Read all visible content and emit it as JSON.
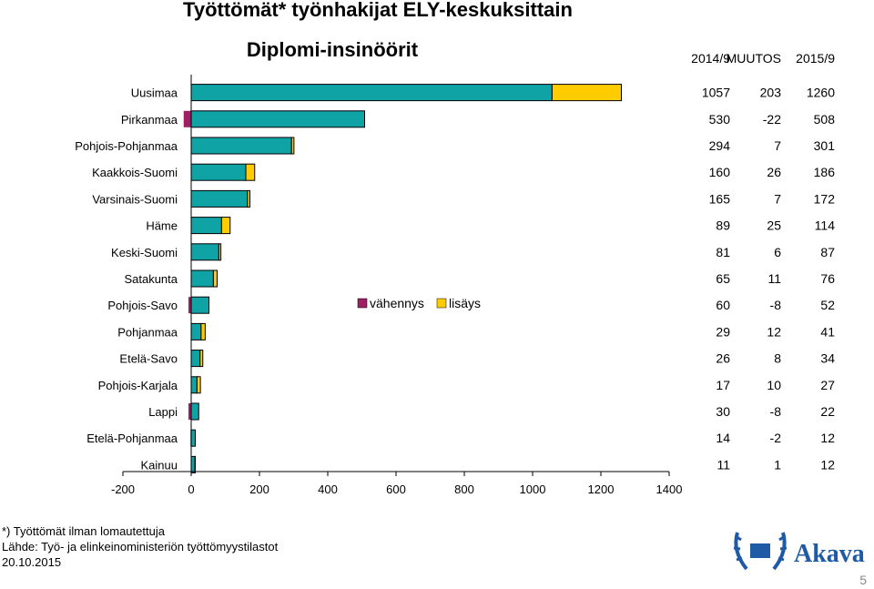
{
  "main_title": "Työttömät* työnhakijat ELY-keskuksittain",
  "chart_data": {
    "type": "bar",
    "orientation": "horizontal-stacked",
    "title": "Diplomi-insinöörit",
    "categories": [
      "Uusimaa",
      "Pirkanmaa",
      "Pohjois-Pohjanmaa",
      "Kaakkois-Suomi",
      "Varsinais-Suomi",
      "Häme",
      "Keski-Suomi",
      "Satakunta",
      "Pohjois-Savo",
      "Pohjanmaa",
      "Etelä-Savo",
      "Pohjois-Karjala",
      "Lappi",
      "Etelä-Pohjanmaa",
      "Kainuu"
    ],
    "base": [
      1057,
      508,
      294,
      160,
      165,
      89,
      81,
      65,
      52,
      29,
      26,
      17,
      22,
      12,
      11
    ],
    "series": [
      {
        "name": "vähennys",
        "color": "#9E1F63",
        "values": [
          0,
          22,
          0,
          0,
          0,
          0,
          0,
          0,
          8,
          0,
          0,
          0,
          8,
          2,
          0
        ]
      },
      {
        "name": "lisäys",
        "color": "#FFCC00",
        "values": [
          203,
          0,
          7,
          26,
          7,
          25,
          6,
          11,
          0,
          12,
          8,
          10,
          0,
          0,
          1
        ]
      }
    ],
    "base_color": "#0FA3A6",
    "xlim": [
      -200,
      1400
    ],
    "xticks": [
      "-200",
      "0",
      "200",
      "400",
      "600",
      "800",
      "1000",
      "1200",
      "1400"
    ],
    "xtick_values": [
      -200,
      0,
      200,
      400,
      600,
      800,
      1000,
      1200,
      1400
    ],
    "legend_placement": "center"
  },
  "table": {
    "headers": [
      "2014/9",
      "MUUTOS",
      "2015/9"
    ],
    "rows": [
      [
        "1057",
        "203",
        "1260"
      ],
      [
        "530",
        "-22",
        "508"
      ],
      [
        "294",
        "7",
        "301"
      ],
      [
        "160",
        "26",
        "186"
      ],
      [
        "165",
        "7",
        "172"
      ],
      [
        "89",
        "25",
        "114"
      ],
      [
        "81",
        "6",
        "87"
      ],
      [
        "65",
        "11",
        "76"
      ],
      [
        "60",
        "-8",
        "52"
      ],
      [
        "29",
        "12",
        "41"
      ],
      [
        "26",
        "8",
        "34"
      ],
      [
        "17",
        "10",
        "27"
      ],
      [
        "30",
        "-8",
        "22"
      ],
      [
        "14",
        "-2",
        "12"
      ],
      [
        "11",
        "1",
        "12"
      ]
    ]
  },
  "footer": {
    "note": "*) Työttömät ilman lomautettuja",
    "source": "Lähde: Työ- ja elinkeinoministeriön työttömyystilastot",
    "date": "20.10.2015"
  },
  "logo": {
    "text": "Akava",
    "color": "#1F5AA6"
  },
  "page_number": "5"
}
